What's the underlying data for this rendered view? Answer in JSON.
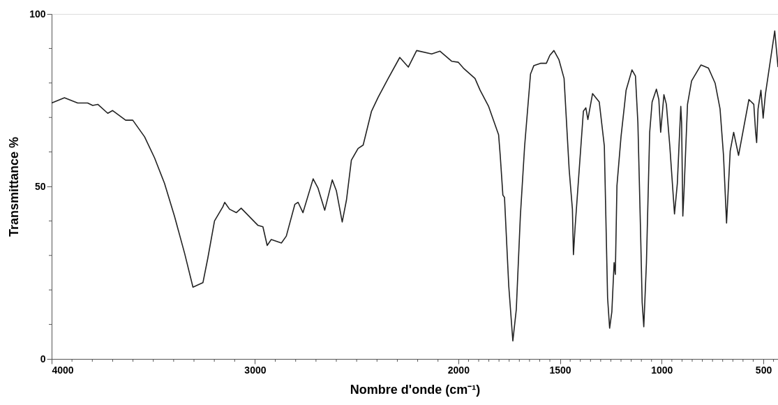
{
  "chart_data": {
    "type": "line",
    "xlabel": "Nombre d'onde (cm⁻¹)",
    "ylabel": "Transmittance %",
    "xlim": [
      4000,
      428
    ],
    "ylim": [
      0,
      100
    ],
    "xticks": [
      4000,
      {
        "value": 3900,
        "label": null
      },
      {
        "value": 3800,
        "label": null
      },
      {
        "value": 3700,
        "label": null
      },
      {
        "value": 3600,
        "label": null
      },
      {
        "value": 3500,
        "label": null
      },
      {
        "value": 3400,
        "label": null
      },
      {
        "value": 3300,
        "label": null
      },
      {
        "value": 3200,
        "label": null
      },
      {
        "value": 3100,
        "label": null
      },
      3000,
      {
        "value": 2900,
        "label": null
      },
      {
        "value": 2800,
        "label": null
      },
      {
        "value": 2700,
        "label": null
      },
      {
        "value": 2600,
        "label": null
      },
      {
        "value": 2500,
        "label": null
      },
      {
        "value": 2400,
        "label": null
      },
      {
        "value": 2300,
        "label": null
      },
      {
        "value": 2200,
        "label": null
      },
      {
        "value": 2100,
        "label": null
      },
      2000,
      {
        "value": 1950,
        "label": null
      },
      {
        "value": 1900,
        "label": null
      },
      {
        "value": 1850,
        "label": null
      },
      {
        "value": 1800,
        "label": null
      },
      {
        "value": 1750,
        "label": null
      },
      {
        "value": 1700,
        "label": null
      },
      {
        "value": 1650,
        "label": null
      },
      {
        "value": 1600,
        "label": null
      },
      {
        "value": 1550,
        "label": null
      },
      1500,
      {
        "value": 1450,
        "label": null
      },
      {
        "value": 1400,
        "label": null
      },
      {
        "value": 1350,
        "label": null
      },
      {
        "value": 1300,
        "label": null
      },
      {
        "value": 1250,
        "label": null
      },
      {
        "value": 1200,
        "label": null
      },
      {
        "value": 1150,
        "label": null
      },
      {
        "value": 1100,
        "label": null
      },
      {
        "value": 1050,
        "label": null
      },
      1000,
      {
        "value": 950,
        "label": null
      },
      {
        "value": 900,
        "label": null
      },
      {
        "value": 850,
        "label": null
      },
      {
        "value": 800,
        "label": null
      },
      {
        "value": 750,
        "label": null
      },
      {
        "value": 700,
        "label": null
      },
      {
        "value": 650,
        "label": null
      },
      {
        "value": 600,
        "label": null
      },
      {
        "value": 550,
        "label": null
      },
      500,
      {
        "value": 450,
        "label": null
      }
    ],
    "yticks": [
      0,
      {
        "value": 10,
        "label": null
      },
      {
        "value": 20,
        "label": null
      },
      {
        "value": 30,
        "label": null
      },
      {
        "value": 40,
        "label": null
      },
      50,
      {
        "value": 60,
        "label": null
      },
      {
        "value": 70,
        "label": null
      },
      {
        "value": 80,
        "label": null
      },
      {
        "value": 90,
        "label": null
      },
      100
    ],
    "grid": false,
    "marker": "none",
    "line_style": "solid",
    "series": [
      {
        "color": "#222222",
        "x": [
          4000,
          3937,
          3872,
          3823,
          3798,
          3773,
          3724,
          3700,
          3636,
          3601,
          3543,
          3494,
          3445,
          3396,
          3346,
          3305,
          3256,
          3232,
          3199,
          3158,
          3149,
          3125,
          3092,
          3068,
          2985,
          2961,
          2940,
          2920,
          2870,
          2846,
          2804,
          2788,
          2764,
          2714,
          2690,
          2657,
          2620,
          2600,
          2571,
          2550,
          2526,
          2493,
          2468,
          2427,
          2394,
          2345,
          2288,
          2246,
          2205,
          2131,
          2090,
          2033,
          2000,
          1975,
          1918,
          1893,
          1851,
          1802,
          1794,
          1781,
          1773,
          1752,
          1732,
          1715,
          1695,
          1674,
          1645,
          1629,
          1596,
          1567,
          1550,
          1530,
          1505,
          1480,
          1455,
          1439,
          1434,
          1426,
          1385,
          1373,
          1363,
          1340,
          1307,
          1282,
          1266,
          1256,
          1245,
          1234,
          1228,
          1220,
          1200,
          1183,
          1175,
          1146,
          1129,
          1117,
          1104,
          1096,
          1088,
          1075,
          1059,
          1047,
          1026,
          1014,
          1005,
          997,
          989,
          977,
          960,
          937,
          923,
          906,
          902,
          896,
          890,
          873,
          853,
          807,
          770,
          737,
          713,
          696,
          681,
          663,
          646,
          622,
          571,
          547,
          538,
          533,
          526,
          512,
          501,
          490,
          444,
          428
        ],
        "values": [
          74.2,
          75.7,
          74.2,
          74.2,
          73.5,
          73.8,
          71.2,
          72,
          69.2,
          69.2,
          64.4,
          58.3,
          50.9,
          41.4,
          30.6,
          20.8,
          22.1,
          29.2,
          40,
          44.1,
          45.4,
          43.4,
          42.4,
          43.7,
          38.7,
          38.3,
          32.9,
          34.6,
          33.6,
          35.6,
          44.8,
          45.4,
          42.4,
          52.2,
          49.5,
          43.1,
          51.9,
          48.8,
          39.7,
          46.1,
          57.6,
          61,
          62,
          71.8,
          75.9,
          81.3,
          87.4,
          84.6,
          89.4,
          88.4,
          89.2,
          86.3,
          86,
          84.3,
          81.3,
          77.9,
          73.2,
          65,
          59,
          47.5,
          46.8,
          21.1,
          5.2,
          14.3,
          41.4,
          61.7,
          82.6,
          85,
          85.7,
          85.7,
          88,
          89.4,
          86.7,
          81.3,
          54.9,
          43.4,
          30.2,
          38,
          71.8,
          72.8,
          69.4,
          76.9,
          74.5,
          61.7,
          17.7,
          8.9,
          13.7,
          27.9,
          24.5,
          50.2,
          64.4,
          73.5,
          77.9,
          83.8,
          82,
          68.4,
          37.3,
          16.4,
          9.3,
          27.9,
          65.7,
          74.5,
          78.2,
          75.2,
          65.7,
          71.1,
          76.6,
          73.8,
          61.7,
          42,
          50.9,
          73.2,
          68.5,
          41.4,
          48.8,
          73.8,
          80.6,
          85.2,
          84.3,
          79.9,
          72.5,
          59,
          39.4,
          60.3,
          65.7,
          59,
          75.2,
          73.8,
          65.7,
          62.7,
          72.5,
          77.9,
          69.8,
          76.7,
          95.1,
          84.6
        ]
      }
    ]
  }
}
